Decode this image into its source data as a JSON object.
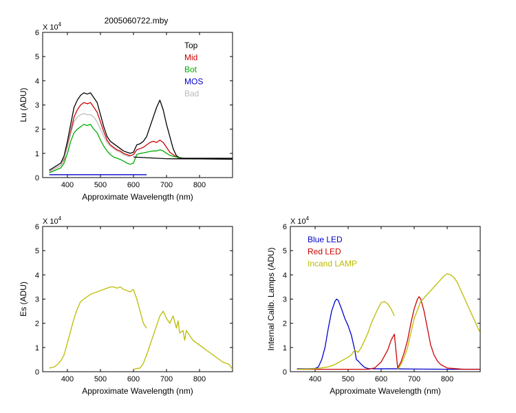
{
  "figure_title": "2005060722.mby",
  "chart_data": [
    {
      "id": "lu",
      "type": "line",
      "title": "2005060722.mby",
      "xlabel": "Approximate Wavelength (nm)",
      "ylabel": "Lu (ADU)",
      "y_exponent_label": "X 10",
      "y_exponent": "4",
      "xlim": [
        325,
        900
      ],
      "ylim": [
        0,
        6
      ],
      "xticks": [
        400,
        500,
        600,
        700,
        800
      ],
      "yticks": [
        0,
        1,
        2,
        3,
        4,
        5,
        6
      ],
      "legend_position": "top-right",
      "series": [
        {
          "name": "Top",
          "color": "#000000",
          "x": [
            345,
            380,
            390,
            395,
            400,
            410,
            420,
            430,
            440,
            450,
            460,
            470,
            480,
            490,
            500,
            510,
            520,
            530,
            540,
            550,
            560,
            570,
            580,
            590,
            600,
            610,
            620,
            630,
            640,
            650,
            660,
            670,
            680,
            690,
            700,
            710,
            720,
            730,
            740,
            750,
            800,
            900
          ],
          "y": [
            0.3,
            0.6,
            0.9,
            1.2,
            1.5,
            2.2,
            2.9,
            3.2,
            3.4,
            3.5,
            3.45,
            3.5,
            3.3,
            3.1,
            2.6,
            2.1,
            1.7,
            1.5,
            1.4,
            1.3,
            1.2,
            1.1,
            1.05,
            1.0,
            1.05,
            1.35,
            1.4,
            1.5,
            1.7,
            2.1,
            2.5,
            2.9,
            3.2,
            2.8,
            2.2,
            1.7,
            1.2,
            0.9,
            0.82,
            0.8,
            0.8,
            0.8
          ]
        },
        {
          "name": "Mid",
          "color": "#cc0000",
          "x": [
            345,
            380,
            390,
            400,
            410,
            420,
            430,
            440,
            450,
            460,
            470,
            480,
            490,
            500,
            510,
            520,
            530,
            540,
            550,
            560,
            570,
            580,
            590,
            600,
            610,
            620,
            630,
            640,
            650,
            660,
            670,
            680,
            690,
            700,
            710,
            720,
            730,
            740
          ],
          "y": [
            0.25,
            0.5,
            0.75,
            1.3,
            1.9,
            2.5,
            2.8,
            3.0,
            3.1,
            3.05,
            3.1,
            2.9,
            2.7,
            2.3,
            1.9,
            1.55,
            1.35,
            1.25,
            1.15,
            1.1,
            1.0,
            0.95,
            0.9,
            0.95,
            1.15,
            1.2,
            1.25,
            1.35,
            1.45,
            1.5,
            1.45,
            1.55,
            1.45,
            1.25,
            1.05,
            0.95,
            0.85,
            0.8
          ]
        },
        {
          "name": "Bot",
          "color": "#00aa00",
          "x": [
            345,
            380,
            390,
            400,
            410,
            420,
            430,
            440,
            450,
            460,
            470,
            480,
            490,
            500,
            510,
            520,
            530,
            540,
            550,
            560,
            570,
            580,
            590,
            600,
            610,
            620,
            630,
            640,
            650,
            660,
            670,
            680,
            690,
            700,
            710,
            720,
            730,
            740
          ],
          "y": [
            0.2,
            0.4,
            0.6,
            1.0,
            1.5,
            1.85,
            2.0,
            2.1,
            2.2,
            2.15,
            2.2,
            2.0,
            1.85,
            1.55,
            1.3,
            1.1,
            0.95,
            0.85,
            0.8,
            0.75,
            0.68,
            0.6,
            0.55,
            0.6,
            0.95,
            1.0,
            1.02,
            1.05,
            1.08,
            1.1,
            1.1,
            1.15,
            1.1,
            1.0,
            0.92,
            0.88,
            0.85,
            0.8
          ]
        },
        {
          "name": "MOS",
          "color": "#0000cc",
          "x": [
            345,
            640
          ],
          "y": [
            0.12,
            0.12
          ]
        },
        {
          "name": "Bad",
          "color": "#bbbbbb",
          "x": [
            345,
            380,
            390,
            400,
            410,
            420,
            430,
            440,
            450,
            460,
            470,
            480,
            490,
            500,
            510,
            520,
            530,
            540,
            550,
            560,
            570,
            580,
            590
          ],
          "y": [
            0.25,
            0.5,
            0.8,
            1.25,
            1.8,
            2.3,
            2.5,
            2.6,
            2.65,
            2.6,
            2.6,
            2.5,
            2.3,
            2.0,
            1.7,
            1.45,
            1.3,
            1.2,
            1.1,
            1.05,
            0.95,
            0.9,
            0.85
          ]
        },
        {
          "name": "",
          "color": "#000000",
          "x": [
            600,
            700,
            800,
            900
          ],
          "y": [
            0.85,
            0.78,
            0.77,
            0.76
          ]
        }
      ]
    },
    {
      "id": "es",
      "type": "line",
      "title": "",
      "xlabel": "Approximate Wavelength (nm)",
      "ylabel": "Es (ADU)",
      "y_exponent_label": "X 10",
      "y_exponent": "4",
      "xlim": [
        325,
        900
      ],
      "ylim": [
        0,
        6
      ],
      "xticks": [
        400,
        500,
        600,
        700,
        800
      ],
      "yticks": [
        0,
        1,
        2,
        3,
        4,
        5,
        6
      ],
      "series": [
        {
          "name": "",
          "color": "#bbbb00",
          "x": [
            345,
            360,
            370,
            380,
            390,
            400,
            410,
            420,
            430,
            440,
            450,
            460,
            470,
            480,
            490,
            500,
            510,
            520,
            530,
            540,
            550,
            560,
            570,
            580,
            590,
            600,
            610,
            620,
            630,
            640
          ],
          "y": [
            0.15,
            0.2,
            0.3,
            0.45,
            0.7,
            1.2,
            1.7,
            2.2,
            2.6,
            2.9,
            3.0,
            3.1,
            3.2,
            3.25,
            3.3,
            3.35,
            3.4,
            3.45,
            3.5,
            3.5,
            3.45,
            3.5,
            3.4,
            3.35,
            3.3,
            3.4,
            3.0,
            2.5,
            2.0,
            1.8
          ]
        },
        {
          "name": "",
          "color": "#bbbb00",
          "x": [
            600,
            620,
            630,
            640,
            650,
            660,
            670,
            680,
            690,
            700,
            710,
            720,
            730,
            735,
            740,
            750,
            755,
            760,
            770,
            780,
            790,
            800,
            810,
            820,
            830,
            840,
            850,
            860,
            870,
            880,
            890,
            900
          ],
          "y": [
            0.1,
            0.15,
            0.35,
            0.7,
            1.1,
            1.5,
            1.9,
            2.3,
            2.5,
            2.2,
            2.0,
            2.3,
            1.8,
            2.1,
            1.6,
            1.7,
            1.3,
            1.7,
            1.5,
            1.3,
            1.2,
            1.1,
            1.0,
            0.9,
            0.8,
            0.7,
            0.6,
            0.5,
            0.4,
            0.35,
            0.3,
            0.1
          ]
        }
      ]
    },
    {
      "id": "lamps",
      "type": "line",
      "title": "",
      "xlabel": "Approximate Wavelength (nm)",
      "ylabel": "Internal Calib. Lamps (ADU)",
      "y_exponent_label": "X 10",
      "y_exponent": "4",
      "xlim": [
        325,
        900
      ],
      "ylim": [
        0,
        6
      ],
      "xticks": [
        400,
        500,
        600,
        700,
        800
      ],
      "yticks": [
        0,
        1,
        2,
        3,
        4,
        5,
        6
      ],
      "legend_position": "top-left",
      "series": [
        {
          "name": "Blue LED",
          "color": "#0000cc",
          "x": [
            345,
            380,
            400,
            410,
            420,
            430,
            440,
            450,
            460,
            465,
            470,
            480,
            490,
            500,
            510,
            520,
            525,
            530,
            540,
            550,
            560,
            580,
            600,
            640,
            700,
            800,
            900
          ],
          "y": [
            0.12,
            0.12,
            0.13,
            0.2,
            0.5,
            1.0,
            1.8,
            2.5,
            2.9,
            3.0,
            2.95,
            2.6,
            2.2,
            1.9,
            1.5,
            0.9,
            0.5,
            0.45,
            0.3,
            0.18,
            0.13,
            0.12,
            0.12,
            0.12,
            0.11,
            0.1,
            0.1
          ]
        },
        {
          "name": "Red LED",
          "color": "#cc0000",
          "x": [
            345,
            560,
            580,
            600,
            620,
            630,
            640,
            650,
            660,
            670,
            680,
            690,
            700,
            710,
            715,
            720,
            730,
            740,
            750,
            760,
            770,
            780,
            800,
            850,
            900
          ],
          "y": [
            0.1,
            0.1,
            0.15,
            0.4,
            0.9,
            1.3,
            1.55,
            0.15,
            0.4,
            0.8,
            1.3,
            2.0,
            2.6,
            3.0,
            3.1,
            3.0,
            2.5,
            1.8,
            1.1,
            0.7,
            0.45,
            0.3,
            0.15,
            0.1,
            0.1
          ]
        },
        {
          "name": "Incand LAMP",
          "color": "#bbbb00",
          "x": [
            345,
            400,
            440,
            460,
            480,
            500,
            510,
            520,
            530,
            540,
            550,
            560,
            570,
            580,
            590,
            600,
            610,
            620,
            630,
            640
          ],
          "y": [
            0.1,
            0.12,
            0.2,
            0.3,
            0.45,
            0.6,
            0.7,
            0.9,
            0.8,
            1.0,
            1.3,
            1.6,
            2.0,
            2.3,
            2.6,
            2.85,
            2.9,
            2.8,
            2.6,
            2.3
          ]
        },
        {
          "name": "",
          "color": "#bbbb00",
          "x": [
            650,
            660,
            670,
            680,
            690,
            700,
            720,
            740,
            760,
            780,
            790,
            800,
            810,
            820,
            830,
            840,
            850,
            860,
            870,
            880,
            890,
            900
          ],
          "y": [
            0.1,
            0.3,
            0.6,
            1.0,
            1.6,
            2.2,
            2.9,
            3.2,
            3.5,
            3.8,
            3.95,
            4.05,
            4.0,
            3.9,
            3.7,
            3.4,
            3.1,
            2.8,
            2.5,
            2.2,
            1.9,
            1.6
          ]
        }
      ]
    }
  ]
}
